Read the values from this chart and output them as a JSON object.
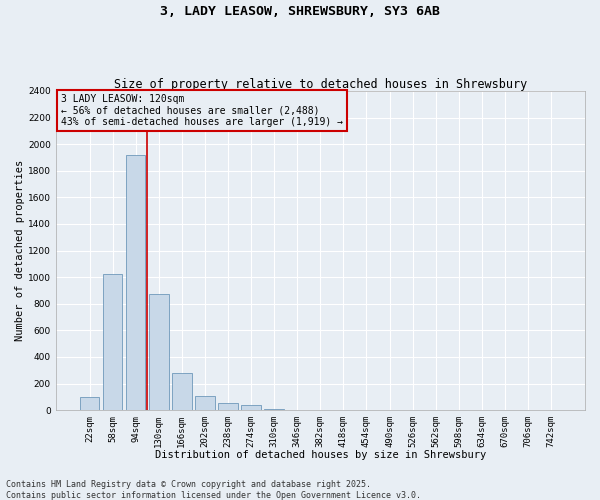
{
  "title_line1": "3, LADY LEASOW, SHREWSBURY, SY3 6AB",
  "title_line2": "Size of property relative to detached houses in Shrewsbury",
  "xlabel": "Distribution of detached houses by size in Shrewsbury",
  "ylabel": "Number of detached properties",
  "categories": [
    "22sqm",
    "58sqm",
    "94sqm",
    "130sqm",
    "166sqm",
    "202sqm",
    "238sqm",
    "274sqm",
    "310sqm",
    "346sqm",
    "382sqm",
    "418sqm",
    "454sqm",
    "490sqm",
    "526sqm",
    "562sqm",
    "598sqm",
    "634sqm",
    "670sqm",
    "706sqm",
    "742sqm"
  ],
  "values": [
    100,
    1020,
    1920,
    870,
    280,
    105,
    50,
    40,
    8,
    0,
    0,
    0,
    0,
    0,
    0,
    0,
    0,
    0,
    0,
    0,
    0
  ],
  "bar_color": "#c8d8e8",
  "bar_edge_color": "#5a8ab0",
  "vline_color": "#cc0000",
  "vline_x": 2.5,
  "annotation_text": "3 LADY LEASOW: 120sqm\n← 56% of detached houses are smaller (2,488)\n43% of semi-detached houses are larger (1,919) →",
  "annotation_box_color": "#cc0000",
  "ylim": [
    0,
    2400
  ],
  "yticks": [
    0,
    200,
    400,
    600,
    800,
    1000,
    1200,
    1400,
    1600,
    1800,
    2000,
    2200,
    2400
  ],
  "background_color": "#e8eef4",
  "grid_color": "#ffffff",
  "footer_line1": "Contains HM Land Registry data © Crown copyright and database right 2025.",
  "footer_line2": "Contains public sector information licensed under the Open Government Licence v3.0.",
  "title_fontsize": 9.5,
  "subtitle_fontsize": 8.5,
  "axis_label_fontsize": 7.5,
  "tick_fontsize": 6.5,
  "annotation_fontsize": 7,
  "footer_fontsize": 6
}
